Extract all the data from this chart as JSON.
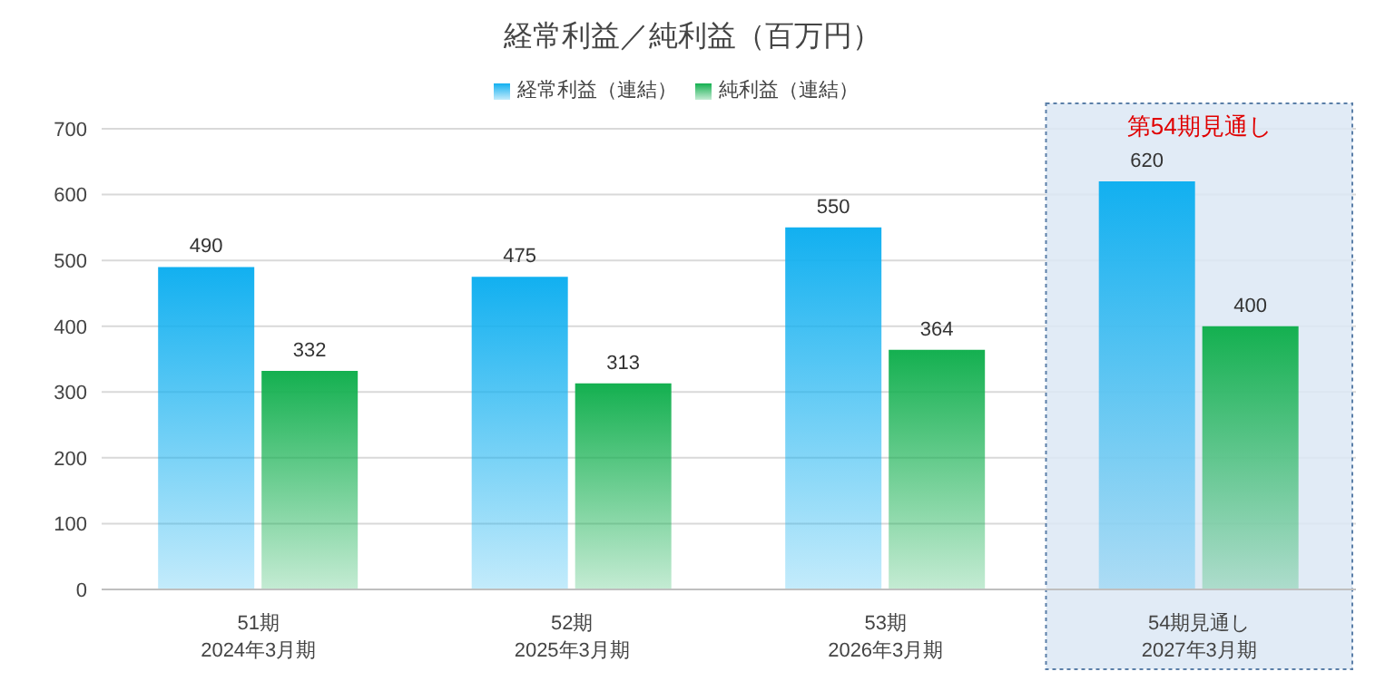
{
  "chart_data": {
    "type": "bar",
    "title": "経常利益／純利益（百万円）",
    "categories": [
      "51期\n2024年3月期",
      "52期\n2025年3月期",
      "53期\n2026年3月期",
      "54期見通し\n2027年3月期"
    ],
    "series": [
      {
        "name": "経常利益（連結）",
        "color": "#12b0f0",
        "values": [
          490,
          475,
          550,
          620
        ]
      },
      {
        "name": "純利益（連結）",
        "color": "#14b050",
        "values": [
          332,
          313,
          364,
          400
        ]
      }
    ],
    "ylim": [
      0,
      700
    ],
    "yticks": [
      0,
      100,
      200,
      300,
      400,
      500,
      600,
      700
    ],
    "grid": "y",
    "legend": "top",
    "data_labels": true,
    "bands": [
      {
        "axis": "x",
        "from": "54期見通し\n2027年3月期",
        "to": "54期見通し\n2027年3月期",
        "label": "第54期見通し",
        "color": "#dce8f4"
      }
    ]
  }
}
